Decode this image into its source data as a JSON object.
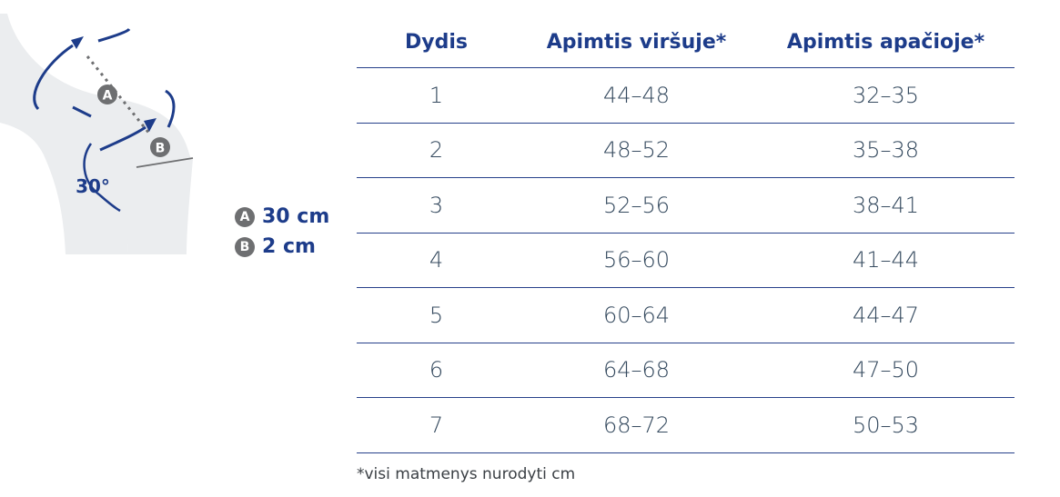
{
  "illustration": {
    "angle_label": "30°",
    "marker_a": "A",
    "marker_b": "B"
  },
  "legend": {
    "items": [
      {
        "marker": "A",
        "value": "30 cm"
      },
      {
        "marker": "B",
        "value": "2 cm"
      }
    ]
  },
  "table": {
    "headers": [
      "Dydis",
      "Apimtis viršuje*",
      "Apimtis apačioje*"
    ],
    "rows": [
      [
        "1",
        "44–48",
        "32–35"
      ],
      [
        "2",
        "48–52",
        "35–38"
      ],
      [
        "3",
        "52–56",
        "38–41"
      ],
      [
        "4",
        "56–60",
        "41–44"
      ],
      [
        "5",
        "60–64",
        "44–47"
      ],
      [
        "6",
        "64–68",
        "47–50"
      ],
      [
        "7",
        "68–72",
        "50–53"
      ]
    ]
  },
  "footnote": "*visi matmenys nurodyti cm",
  "colors": {
    "accent": "#1d3c8a",
    "leg": "#ebedef",
    "marker": "#6e6f71",
    "rule": "#26408a"
  }
}
